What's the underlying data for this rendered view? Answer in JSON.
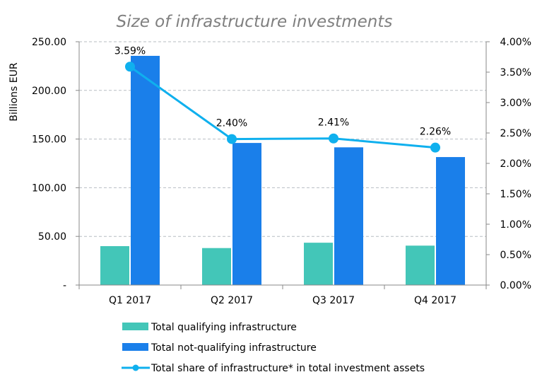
{
  "chart_data": {
    "type": "bar",
    "title": "Size of infrastructure investments",
    "ylabel": "Billions EUR",
    "ylabel_right": "",
    "categories": [
      "Q1 2017",
      "Q2 2017",
      "Q3 2017",
      "Q4 2017"
    ],
    "ylim": [
      0,
      250
    ],
    "yticks": [
      "-",
      "50.00",
      "100.00",
      "150.00",
      "200.00",
      "250.00"
    ],
    "y2lim": [
      0,
      4
    ],
    "y2ticks": [
      "0.00%",
      "0.50%",
      "1.00%",
      "1.50%",
      "2.00%",
      "2.50%",
      "3.00%",
      "3.50%",
      "4.00%"
    ],
    "grid": true,
    "legend_position": "bottom",
    "series": [
      {
        "name": "Total qualifying infrastructure",
        "type": "bar",
        "color": "#43c6b8",
        "values": [
          40,
          38,
          43.5,
          40.5
        ]
      },
      {
        "name": "Total not-qualifying infrastructure",
        "type": "bar",
        "color": "#1a7fea",
        "values": [
          235.5,
          146,
          141.5,
          131.5
        ]
      },
      {
        "name": "Total share of infrastructure* in total investment assets",
        "type": "line",
        "axis": "right",
        "color": "#0fb0ee",
        "values": [
          3.59,
          2.4,
          2.41,
          2.26
        ],
        "labels": [
          "3.59%",
          "2.40%",
          "2.41%",
          "2.26%"
        ]
      }
    ]
  }
}
